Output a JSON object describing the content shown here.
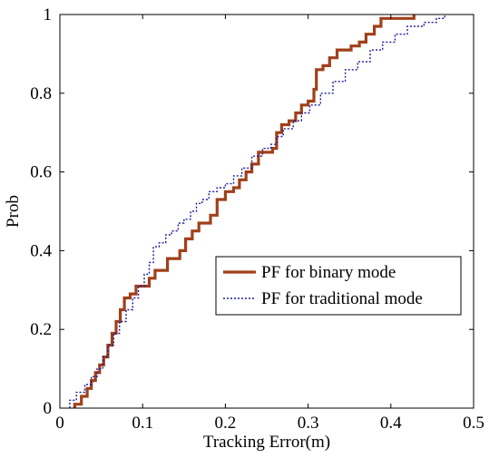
{
  "chart_data": {
    "type": "line",
    "title": "",
    "xlabel": "Tracking Error(m)",
    "ylabel": "Prob",
    "xlim": [
      0,
      0.5
    ],
    "ylim": [
      0,
      1
    ],
    "xticks": [
      "0",
      "0.1",
      "0.2",
      "0.3",
      "0.4",
      "0.5"
    ],
    "yticks": [
      "0",
      "0.2",
      "0.4",
      "0.6",
      "0.8",
      "1"
    ],
    "grid": false,
    "legend_position": "center-right",
    "series": [
      {
        "name": "PF for binary mode",
        "color": "#a0401a",
        "style": "solid",
        "x": [
          0.018,
          0.026,
          0.033,
          0.038,
          0.043,
          0.048,
          0.053,
          0.058,
          0.063,
          0.068,
          0.073,
          0.078,
          0.085,
          0.092,
          0.1,
          0.108,
          0.115,
          0.122,
          0.13,
          0.138,
          0.145,
          0.152,
          0.16,
          0.168,
          0.175,
          0.182,
          0.19,
          0.2,
          0.21,
          0.217,
          0.225,
          0.232,
          0.24,
          0.257,
          0.262,
          0.268,
          0.277,
          0.285,
          0.292,
          0.3,
          0.307,
          0.31,
          0.318,
          0.326,
          0.335,
          0.345,
          0.352,
          0.362,
          0.37,
          0.38,
          0.388,
          0.4,
          0.41,
          0.42,
          0.428
        ],
        "y": [
          0.01,
          0.03,
          0.05,
          0.07,
          0.09,
          0.11,
          0.13,
          0.16,
          0.19,
          0.22,
          0.25,
          0.28,
          0.29,
          0.31,
          0.31,
          0.33,
          0.35,
          0.35,
          0.38,
          0.38,
          0.4,
          0.43,
          0.45,
          0.47,
          0.47,
          0.49,
          0.53,
          0.55,
          0.56,
          0.58,
          0.6,
          0.62,
          0.65,
          0.66,
          0.7,
          0.72,
          0.73,
          0.75,
          0.77,
          0.78,
          0.81,
          0.86,
          0.87,
          0.89,
          0.91,
          0.91,
          0.92,
          0.93,
          0.95,
          0.97,
          0.99,
          0.99,
          0.99,
          0.99,
          1.0
        ]
      },
      {
        "name": "PF for traditional mode",
        "color": "#1a1aa0",
        "style": "dotted",
        "x": [
          0.012,
          0.02,
          0.03,
          0.038,
          0.045,
          0.052,
          0.058,
          0.065,
          0.072,
          0.08,
          0.088,
          0.095,
          0.102,
          0.108,
          0.113,
          0.12,
          0.128,
          0.135,
          0.143,
          0.15,
          0.158,
          0.165,
          0.172,
          0.18,
          0.19,
          0.2,
          0.21,
          0.22,
          0.232,
          0.245,
          0.255,
          0.262,
          0.27,
          0.282,
          0.292,
          0.302,
          0.315,
          0.33,
          0.345,
          0.36,
          0.375,
          0.39,
          0.405,
          0.42,
          0.44,
          0.455,
          0.465
        ],
        "y": [
          0.02,
          0.04,
          0.06,
          0.08,
          0.1,
          0.13,
          0.16,
          0.19,
          0.22,
          0.25,
          0.28,
          0.31,
          0.34,
          0.37,
          0.41,
          0.42,
          0.44,
          0.45,
          0.47,
          0.48,
          0.5,
          0.52,
          0.53,
          0.55,
          0.56,
          0.57,
          0.59,
          0.61,
          0.64,
          0.66,
          0.67,
          0.69,
          0.71,
          0.73,
          0.75,
          0.77,
          0.8,
          0.83,
          0.86,
          0.88,
          0.91,
          0.93,
          0.95,
          0.97,
          0.98,
          0.99,
          1.0
        ]
      }
    ]
  }
}
